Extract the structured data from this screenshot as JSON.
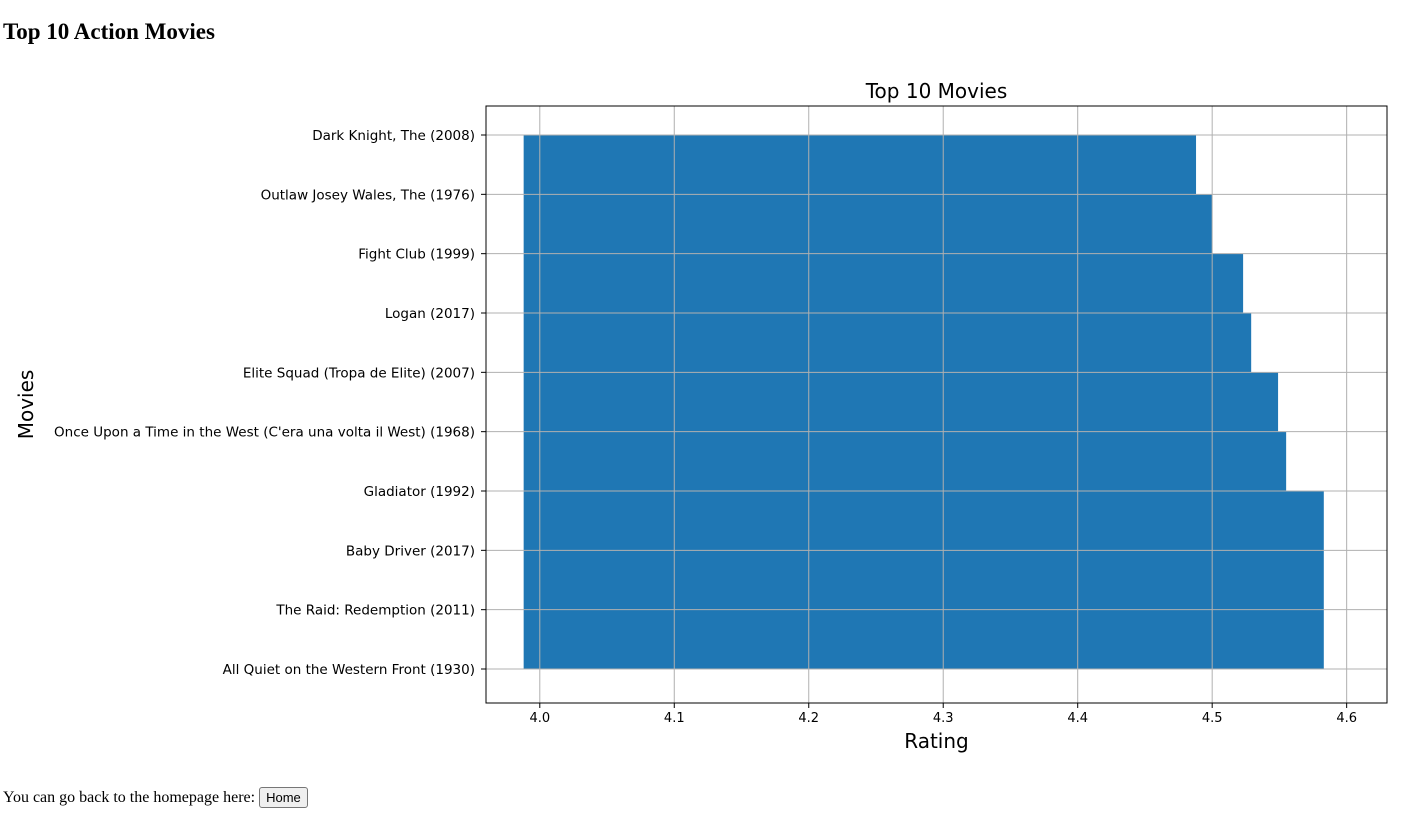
{
  "page": {
    "heading": "Top 10 Action Movies",
    "footer_text": "You can go back to the homepage here:",
    "home_button_label": "Home"
  },
  "chart_data": {
    "type": "bar",
    "orientation": "horizontal",
    "title": "Top 10 Movies",
    "xlabel": "Rating",
    "ylabel": "Movies",
    "xlim": [
      3.96,
      4.63
    ],
    "bar_start": 3.988,
    "xticks": [
      "4.0",
      "4.1",
      "4.2",
      "4.3",
      "4.4",
      "4.5",
      "4.6"
    ],
    "grid": true,
    "bar_color": "#1f77b4",
    "categories": [
      "Dark Knight, The (2008)",
      "Outlaw Josey Wales, The (1976)",
      "Fight Club (1999)",
      "Logan (2017)",
      "Elite Squad (Tropa de Elite) (2007)",
      "Once Upon a Time in the West (C'era una volta il West) (1968)",
      "Gladiator (1992)",
      "Baby Driver (2017)",
      "The Raid: Redemption (2011)",
      "All Quiet on the Western Front (1930)"
    ],
    "values": [
      4.488,
      4.5,
      4.523,
      4.529,
      4.549,
      4.555,
      4.583,
      4.583,
      4.583,
      4.583
    ]
  }
}
